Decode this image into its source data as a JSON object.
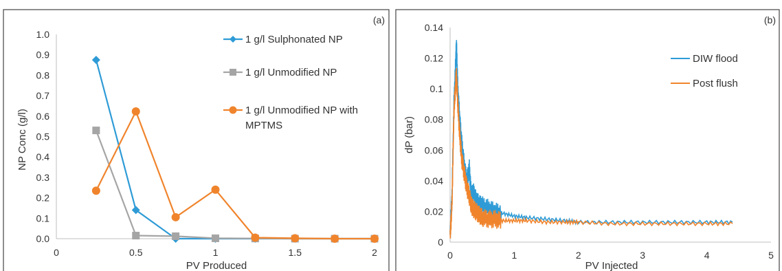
{
  "colors": {
    "blue": "#2e9bd6",
    "gray": "#a5a5a5",
    "orange": "#f0842c",
    "frame": "#444444",
    "axis": "#bfbfbf"
  },
  "chart_data": [
    {
      "type": "line",
      "panel_label": "(a)",
      "title": "",
      "xlabel": "PV Produced",
      "ylabel": "NP Conc (g/l)",
      "xlim": [
        0,
        2
      ],
      "ylim": [
        0,
        1
      ],
      "xticks": [
        0,
        0.5,
        1,
        1.5,
        2
      ],
      "xtick_labels": [
        "0",
        "0.5",
        "1",
        "1.5",
        "2"
      ],
      "yticks": [
        0,
        0.1,
        0.2,
        0.3,
        0.4,
        0.5,
        0.6,
        0.7,
        0.8,
        0.9,
        1.0
      ],
      "ytick_labels": [
        "0.0",
        "0.1",
        "0.2",
        "0.3",
        "0.4",
        "0.5",
        "0.6",
        "0.7",
        "0.8",
        "0.9",
        "1.0"
      ],
      "grid": false,
      "legend_position": "top-right",
      "series": [
        {
          "name": "1 g/l Sulphonated NP",
          "legend_lines": [
            "1 g/l Sulphonated NP"
          ],
          "color": "#2e9bd6",
          "marker": "diamond",
          "x": [
            0.25,
            0.5,
            0.75,
            1.0,
            1.25,
            1.5,
            1.75,
            2.0
          ],
          "y": [
            0.875,
            0.14,
            0.0,
            0.0,
            0.0,
            0.0,
            0.0,
            0.0
          ]
        },
        {
          "name": "1 g/l Unmodified NP",
          "legend_lines": [
            "1 g/l Unmodified NP"
          ],
          "color": "#a5a5a5",
          "marker": "square",
          "x": [
            0.25,
            0.5,
            0.75,
            1.0,
            1.25,
            1.5,
            1.75,
            2.0
          ],
          "y": [
            0.53,
            0.015,
            0.012,
            0.002,
            0.001,
            0.0,
            0.0,
            0.0
          ]
        },
        {
          "name": "1 g/l Unmodified NP with MPTMS",
          "legend_lines": [
            "1 g/l Unmodified NP with",
            "MPTMS"
          ],
          "color": "#f0842c",
          "marker": "circle",
          "x": [
            0.25,
            0.5,
            0.75,
            1.0,
            1.25,
            1.5,
            1.75,
            2.0
          ],
          "y": [
            0.235,
            0.623,
            0.105,
            0.24,
            0.005,
            0.002,
            0.0,
            0.0
          ]
        }
      ]
    },
    {
      "type": "line",
      "panel_label": "(b)",
      "title": "",
      "xlabel": "PV Injected",
      "ylabel": "dP (bar)",
      "xlim": [
        0,
        5
      ],
      "ylim": [
        0,
        0.14
      ],
      "xticks": [
        0,
        1,
        2,
        3,
        4,
        5
      ],
      "xtick_labels": [
        "0",
        "1",
        "2",
        "3",
        "4",
        "5"
      ],
      "yticks": [
        0,
        0.02,
        0.04,
        0.06,
        0.08,
        0.1,
        0.12,
        0.14
      ],
      "ytick_labels": [
        "0",
        "0.02",
        "0.04",
        "0.06",
        "0.08",
        "0.1",
        "0.12",
        "0.14"
      ],
      "grid": false,
      "legend_position": "top-right",
      "series": [
        {
          "name": "DIW flood",
          "color": "#2e9bd6",
          "x": [
            0,
            0.03,
            0.06,
            0.09,
            0.1,
            0.12,
            0.15,
            0.18,
            0.22,
            0.26,
            0.3,
            0.33,
            0.36,
            0.4,
            0.45,
            0.5,
            0.6,
            0.7,
            0.8,
            1.0,
            1.2,
            1.5,
            1.8,
            2.0,
            2.5,
            3.0,
            3.5,
            4.0,
            4.4
          ],
          "y": [
            0.005,
            0.03,
            0.09,
            0.12,
            0.128,
            0.1,
            0.08,
            0.065,
            0.05,
            0.04,
            0.048,
            0.03,
            0.033,
            0.028,
            0.025,
            0.024,
            0.022,
            0.02,
            0.019,
            0.017,
            0.016,
            0.015,
            0.014,
            0.013,
            0.013,
            0.013,
            0.013,
            0.013,
            0.013
          ]
        },
        {
          "name": "Post flush",
          "color": "#f0842c",
          "x": [
            0,
            0.03,
            0.06,
            0.09,
            0.1,
            0.12,
            0.15,
            0.18,
            0.22,
            0.26,
            0.3,
            0.33,
            0.36,
            0.4,
            0.45,
            0.5,
            0.6,
            0.7,
            0.8,
            1.0,
            1.2,
            1.5,
            1.8,
            2.0,
            2.5,
            3.0,
            3.5,
            4.0,
            4.4
          ],
          "y": [
            0.003,
            0.025,
            0.085,
            0.105,
            0.108,
            0.09,
            0.07,
            0.055,
            0.045,
            0.036,
            0.03,
            0.024,
            0.022,
            0.02,
            0.018,
            0.016,
            0.015,
            0.015,
            0.014,
            0.014,
            0.014,
            0.013,
            0.013,
            0.013,
            0.012,
            0.012,
            0.012,
            0.012,
            0.012
          ]
        }
      ]
    }
  ]
}
